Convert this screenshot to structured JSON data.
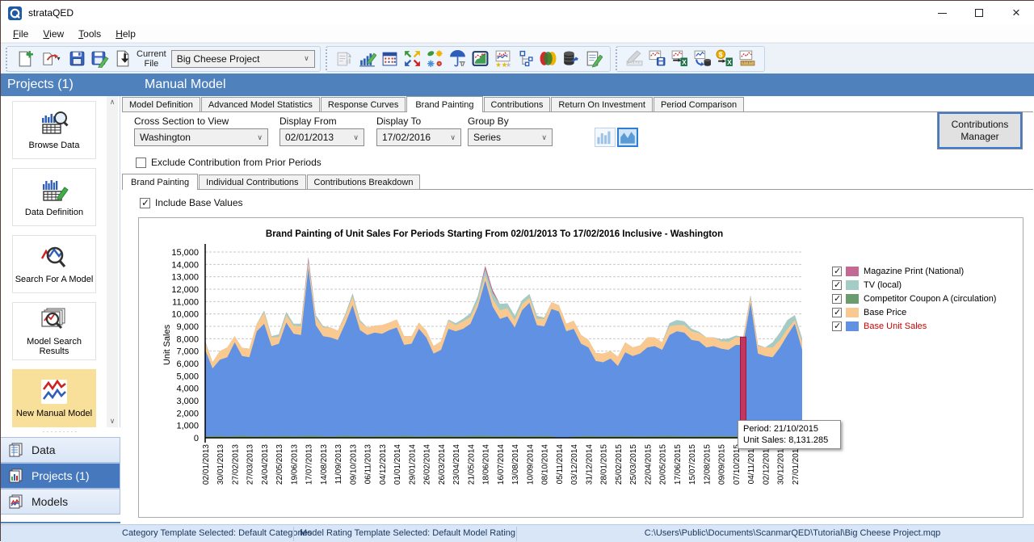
{
  "window": {
    "title": "strataQED"
  },
  "menu": {
    "items": [
      {
        "label": "File"
      },
      {
        "label": "View"
      },
      {
        "label": "Tools"
      },
      {
        "label": "Help"
      }
    ]
  },
  "toolbar": {
    "current_file_label": "Current\nFile",
    "project_select_value": "Big Cheese Project",
    "group1_icons": [
      "new-document",
      "open-document-dropdown",
      "save",
      "save-edit",
      "import-current-file"
    ],
    "group2_icons": [
      "report-disabled",
      "chart-edit",
      "calendar",
      "expand-arrows",
      "seasonality",
      "holiday-umbrella",
      "chart-frame",
      "model-rating",
      "tree-hierarchy",
      "venn-rings",
      "database-plug",
      "notes-edit"
    ],
    "group3_icons": [
      "draw-disabled",
      "chart-save",
      "chart-to-excel",
      "chart-to-database",
      "price-to-excel",
      "chart-ruler"
    ]
  },
  "sidebar": {
    "header": "Projects (1)",
    "items": [
      {
        "label": "Browse Data"
      },
      {
        "label": "Data Definition"
      },
      {
        "label": "Search For A Model"
      },
      {
        "label": "Model Search Results"
      },
      {
        "label": "New Manual Model",
        "selected": true
      }
    ],
    "nav": [
      {
        "label": "Data"
      },
      {
        "label": "Projects (1)",
        "selected": true
      },
      {
        "label": "Models"
      }
    ]
  },
  "header": {
    "title": "Manual Model"
  },
  "tabs": {
    "items": [
      "Model Definition",
      "Advanced Model Statistics",
      "Response Curves",
      "Brand Painting",
      "Contributions",
      "Return On Investment",
      "Period Comparison"
    ],
    "active": "Brand Painting"
  },
  "controls": {
    "cross_section_label": "Cross Section to View",
    "cross_section_value": "Washington",
    "display_from_label": "Display From",
    "display_from_value": "02/01/2013",
    "display_to_label": "Display To",
    "display_to_value": "17/02/2016",
    "group_by_label": "Group By",
    "group_by_value": "Series",
    "exclude_checkbox_label": "Exclude Contribution from Prior Periods",
    "contributions_manager_label": "Contributions\nManager"
  },
  "subtabs": {
    "items": [
      "Brand Painting",
      "Individual Contributions",
      "Contributions Breakdown"
    ],
    "active": "Brand Painting",
    "include_base_label": "Include Base Values"
  },
  "tooltip": {
    "line1": "Period: 21/10/2015",
    "line2": "Unit Sales: 8,131.285"
  },
  "statusbar": {
    "category_template": "Category Template Selected: Default Categories",
    "model_rating_template": "Model Rating Template Selected: Default Model Rating",
    "file_path": "C:\\Users\\Public\\Documents\\ScanmarQED\\Tutorial\\Big Cheese Project.mqp"
  },
  "chart_data": {
    "type": "area",
    "title": "Brand Painting of Unit Sales For Periods Starting From 02/01/2013 To 17/02/2016 Inclusive - Washington",
    "ylabel": "Unit Sales",
    "ylim": [
      0,
      15000
    ],
    "ytick_step": 1000,
    "grid": true,
    "legend_position": "right",
    "x_period": "biweekly points from 02/01/2013 to 10/02/2016, stacked areas",
    "x_tick_labels": [
      "02/01/2013",
      "30/01/2013",
      "27/02/2013",
      "27/03/2013",
      "24/04/2013",
      "22/05/2013",
      "19/06/2013",
      "17/07/2013",
      "14/08/2013",
      "11/09/2013",
      "09/10/2013",
      "06/11/2013",
      "04/12/2013",
      "01/01/2014",
      "29/01/2014",
      "26/02/2014",
      "26/03/2014",
      "23/04/2014",
      "21/05/2014",
      "18/06/2014",
      "16/07/2014",
      "13/08/2014",
      "10/09/2014",
      "08/10/2014",
      "05/11/2014",
      "03/12/2014",
      "31/12/2014",
      "28/01/2015",
      "25/02/2015",
      "25/03/2015",
      "22/04/2015",
      "20/05/2015",
      "17/06/2015",
      "15/07/2015",
      "12/08/2015",
      "09/09/2015",
      "07/10/2015",
      "04/11/2015",
      "02/12/2015",
      "30/12/2015",
      "27/01/2016"
    ],
    "series": [
      {
        "name": "Magazine Print (National)",
        "color": "#c36a94",
        "values": [
          0,
          0,
          0,
          0,
          0,
          0,
          0,
          0,
          0,
          0,
          0,
          0,
          0,
          0,
          250,
          0,
          0,
          0,
          0,
          0,
          0,
          0,
          0,
          0,
          0,
          0,
          0,
          0,
          0,
          0,
          0,
          0,
          0,
          0,
          0,
          0,
          0,
          0,
          300,
          250,
          0,
          0,
          0,
          0,
          0,
          0,
          0,
          0,
          0,
          0,
          0,
          0,
          0,
          0,
          0,
          0,
          0,
          0,
          0,
          0,
          0,
          0,
          0,
          0,
          0,
          0,
          0,
          0,
          0,
          0,
          0,
          0,
          0,
          0,
          0,
          0,
          0,
          0,
          0,
          0,
          0,
          0
        ]
      },
      {
        "name": "TV (local)",
        "color": "#a3ccc4",
        "values": [
          100,
          0,
          0,
          0,
          0,
          0,
          0,
          0,
          150,
          100,
          200,
          250,
          150,
          200,
          250,
          200,
          100,
          0,
          0,
          150,
          250,
          150,
          0,
          0,
          0,
          0,
          0,
          0,
          0,
          0,
          0,
          0,
          0,
          100,
          150,
          200,
          300,
          450,
          500,
          500,
          500,
          400,
          350,
          300,
          300,
          250,
          100,
          0,
          0,
          0,
          0,
          0,
          0,
          0,
          0,
          0,
          0,
          0,
          0,
          0,
          0,
          0,
          0,
          250,
          400,
          300,
          200,
          100,
          0,
          0,
          150,
          250,
          150,
          0,
          200,
          100,
          0,
          400,
          600,
          700,
          400,
          300
        ]
      },
      {
        "name": "Competitor Coupon A (circulation)",
        "color": "#6b9c6d",
        "values": [
          150,
          130,
          170,
          110,
          150,
          180,
          140,
          120,
          160,
          140,
          150,
          170,
          130,
          150,
          180,
          160,
          140,
          120,
          150,
          170,
          160,
          140,
          130,
          150,
          160,
          140,
          150,
          170,
          150,
          130,
          140,
          160,
          150,
          170,
          140,
          150,
          160,
          180,
          170,
          150,
          140,
          160,
          150,
          140,
          130,
          150,
          160,
          140,
          0,
          0,
          120,
          140,
          160,
          150,
          130,
          140,
          150,
          160,
          140,
          130,
          150,
          140,
          160,
          170,
          150,
          140,
          130,
          150,
          140,
          160,
          150,
          140,
          150,
          160,
          140,
          130,
          150,
          160,
          170,
          160,
          180,
          160
        ]
      },
      {
        "name": "Base Price",
        "color": "#f9c990",
        "values": [
          600,
          500,
          700,
          800,
          500,
          650,
          700,
          600,
          900,
          700,
          550,
          600,
          650,
          700,
          400,
          600,
          700,
          800,
          750,
          600,
          700,
          650,
          600,
          550,
          700,
          600,
          650,
          700,
          600,
          500,
          550,
          600,
          700,
          650,
          500,
          600,
          550,
          400,
          400,
          600,
          700,
          650,
          600,
          500,
          400,
          500,
          600,
          550,
          500,
          600,
          650,
          700,
          600,
          650,
          700,
          600,
          750,
          800,
          700,
          650,
          800,
          700,
          600,
          700,
          500,
          600,
          700,
          650,
          800,
          700,
          600,
          650,
          600,
          630,
          400,
          600,
          700,
          800,
          600,
          500,
          300,
          600
        ]
      },
      {
        "name": "Base Unit Sales",
        "color": "#6191e2",
        "label_color": "#cc0000",
        "values": [
          7100,
          5600,
          6300,
          6500,
          7700,
          6600,
          6500,
          8600,
          9200,
          7400,
          7600,
          9300,
          8400,
          8300,
          13700,
          9100,
          8200,
          8100,
          7900,
          9200,
          10700,
          8700,
          8300,
          8500,
          8400,
          8700,
          8900,
          7500,
          7600,
          8800,
          8100,
          6800,
          7100,
          8800,
          8600,
          8800,
          9200,
          10600,
          12700,
          10600,
          9600,
          9800,
          8900,
          10300,
          10900,
          9100,
          9000,
          10400,
          10200,
          8600,
          8800,
          7600,
          7300,
          6200,
          6100,
          6400,
          5800,
          6900,
          6600,
          6800,
          7300,
          7400,
          7100,
          8300,
          8600,
          8500,
          7900,
          7800,
          7300,
          7400,
          7200,
          7100,
          7500,
          7500,
          10900,
          6800,
          6600,
          6500,
          7300,
          8300,
          9200,
          7100
        ]
      }
    ],
    "stack_order_bottom_to_top": [
      "Base Unit Sales",
      "Base Price",
      "TV (local)",
      "Magazine Print (National)"
    ],
    "competitor_series_drawn_at_baseline": true,
    "selected_index": 73,
    "selected_period": "21/10/2015",
    "selected_value": 8131.285,
    "selected_color": "#c5355f"
  }
}
